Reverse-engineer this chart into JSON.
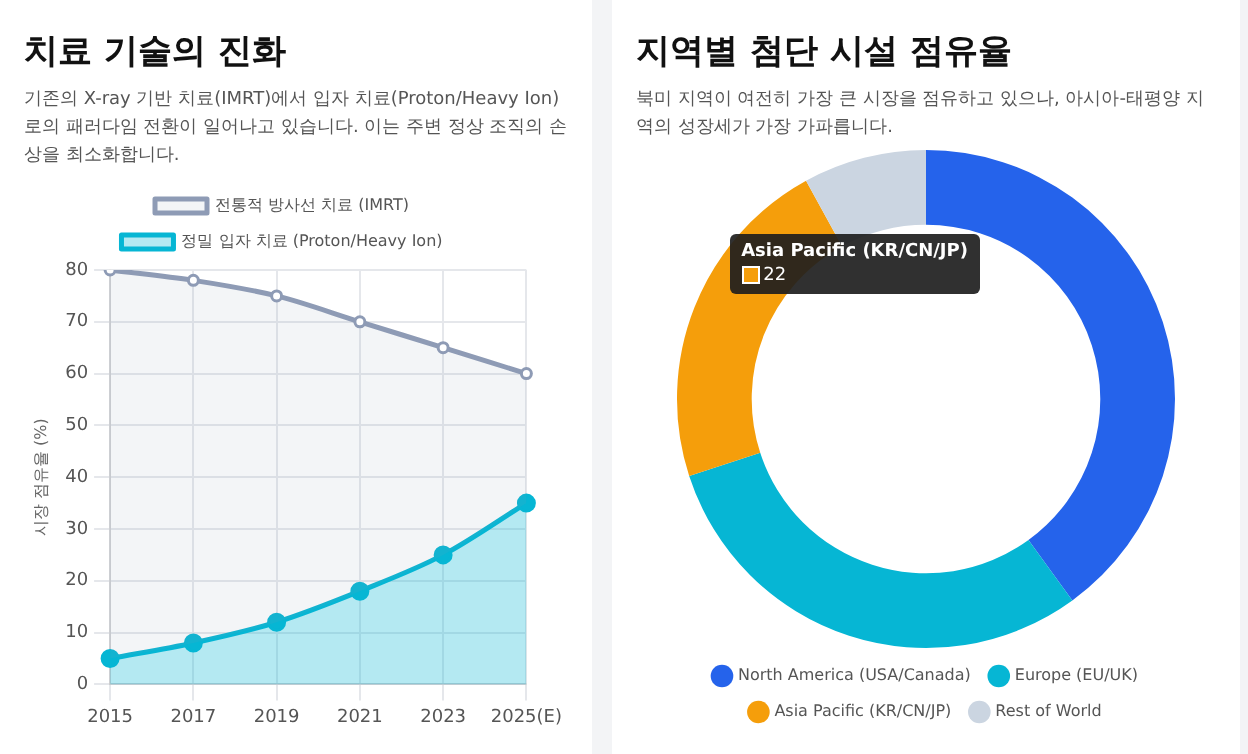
{
  "chart_data": [
    {
      "type": "area",
      "title": "치료 기술의 진화",
      "subtitle": "기존의 X-ray 기반 치료(IMRT)에서 입자 치료(Proton/Heavy Ion)로의 패러다임 전환이 일어나고 있습니다. 이는 주변 정상 조직의 손상을 최소화합니다.",
      "ylabel": "시장 점유율 (%)",
      "categories": [
        "2015",
        "2017",
        "2019",
        "2021",
        "2023",
        "2025(E)"
      ],
      "series": [
        {
          "name": "전통적 방사선 치료 (IMRT)",
          "color": "#8e9bb5",
          "values": [
            80,
            78,
            75,
            70,
            65,
            60
          ]
        },
        {
          "name": "정밀 입자 치료 (Proton/Heavy Ion)",
          "color": "#06b6d4",
          "values": [
            5,
            8,
            12,
            18,
            25,
            35
          ]
        }
      ],
      "ylim": [
        0,
        80
      ],
      "yticks": [
        0,
        10,
        20,
        30,
        40,
        50,
        60,
        70,
        80
      ],
      "grid": true,
      "legend": "top",
      "marker": "circle"
    },
    {
      "type": "donut",
      "title": "지역별 첨단 시설 점유율",
      "subtitle": "북미 지역이 여전히 가장 큰 시장을 점유하고 있으나, 아시아-태평양 지역의 성장세가 가장 가파릅니다.",
      "categories": [
        "North America (USA/Canada)",
        "Europe (EU/UK)",
        "Asia Pacific (KR/CN/JP)",
        "Rest of World"
      ],
      "values": [
        40,
        30,
        22,
        8
      ],
      "colors": [
        "#2563eb",
        "#06b6d4",
        "#f59e0b",
        "#cbd5e1"
      ],
      "legend": "bottom",
      "annotations": [
        {
          "text": "22",
          "x": "Asia Pacific (KR/CN/JP)"
        }
      ]
    }
  ]
}
